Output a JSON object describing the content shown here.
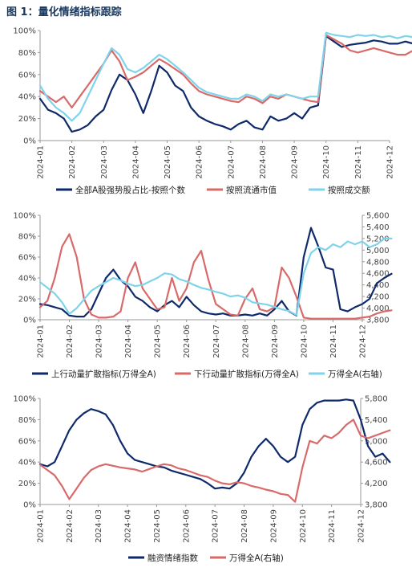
{
  "page_title": "图 1：量化情绪指标跟踪",
  "colors": {
    "navy": "#0f2a6b",
    "red": "#d86a6a",
    "cyan": "#7fd3ea",
    "title": "#17375e",
    "axis": "#666666"
  },
  "chart_data": [
    {
      "type": "line",
      "x_ticks": [
        "2024-01",
        "2024-02",
        "2024-03",
        "2024-04",
        "2024-05",
        "2024-06",
        "2024-07",
        "2024-08",
        "2024-09",
        "2024-10",
        "2024-11",
        "2024-12"
      ],
      "ylim": [
        0,
        100
      ],
      "y_ticks": [
        "0%",
        "20%",
        "40%",
        "60%",
        "80%",
        "100%"
      ],
      "legend_position": "bottom",
      "series": [
        {
          "name": "全部A股强势股占比-按照个数",
          "color": "#0f2a6b",
          "axis": "left",
          "x": [
            0,
            0.25,
            0.5,
            0.75,
            1,
            1.25,
            1.5,
            1.75,
            2,
            2.25,
            2.5,
            2.75,
            3,
            3.25,
            3.5,
            3.75,
            4,
            4.25,
            4.5,
            4.75,
            5,
            5.25,
            5.5,
            5.75,
            6,
            6.25,
            6.5,
            6.75,
            7,
            7.25,
            7.5,
            7.75,
            8,
            8.25,
            8.5,
            8.75,
            9,
            9.25,
            9.5,
            9.75,
            10,
            10.25,
            10.5,
            10.75,
            11,
            11.25,
            11.5,
            11.75,
            12
          ],
          "y": [
            38,
            28,
            25,
            20,
            8,
            10,
            14,
            22,
            28,
            46,
            60,
            55,
            42,
            25,
            45,
            68,
            62,
            50,
            45,
            30,
            22,
            18,
            15,
            13,
            10,
            15,
            18,
            12,
            10,
            22,
            18,
            20,
            25,
            20,
            30,
            32,
            95,
            90,
            85,
            87,
            88,
            89,
            91,
            90,
            88,
            88,
            90,
            88,
            89
          ]
        },
        {
          "name": "按照流通市值",
          "color": "#d86a6a",
          "axis": "left",
          "x": [
            0,
            0.25,
            0.5,
            0.75,
            1,
            1.25,
            1.5,
            1.75,
            2,
            2.25,
            2.5,
            2.75,
            3,
            3.25,
            3.5,
            3.75,
            4,
            4.25,
            4.5,
            4.75,
            5,
            5.25,
            5.5,
            5.75,
            6,
            6.25,
            6.5,
            6.75,
            7,
            7.25,
            7.5,
            7.75,
            8,
            8.25,
            8.5,
            8.75,
            9,
            9.25,
            9.5,
            9.75,
            10,
            10.25,
            10.5,
            10.75,
            11,
            11.25,
            11.5,
            11.75,
            12
          ],
          "y": [
            45,
            40,
            35,
            40,
            30,
            40,
            50,
            60,
            70,
            82,
            72,
            55,
            58,
            62,
            68,
            74,
            70,
            65,
            60,
            52,
            45,
            42,
            40,
            38,
            36,
            35,
            40,
            38,
            34,
            40,
            38,
            42,
            40,
            38,
            36,
            35,
            96,
            92,
            88,
            82,
            80,
            82,
            84,
            82,
            80,
            78,
            78,
            82,
            85
          ]
        },
        {
          "name": "按照成交额",
          "color": "#7fd3ea",
          "axis": "left",
          "x": [
            0,
            0.25,
            0.5,
            0.75,
            1,
            1.25,
            1.5,
            1.75,
            2,
            2.25,
            2.5,
            2.75,
            3,
            3.25,
            3.5,
            3.75,
            4,
            4.25,
            4.5,
            4.75,
            5,
            5.25,
            5.5,
            5.75,
            6,
            6.25,
            6.5,
            6.75,
            7,
            7.25,
            7.5,
            7.75,
            8,
            8.25,
            8.5,
            8.75,
            9,
            9.25,
            9.5,
            9.75,
            10,
            10.25,
            10.5,
            10.75,
            11,
            11.25,
            11.5,
            11.75,
            12
          ],
          "y": [
            50,
            38,
            30,
            25,
            18,
            25,
            40,
            55,
            70,
            84,
            78,
            65,
            62,
            66,
            72,
            78,
            74,
            68,
            62,
            55,
            48,
            44,
            42,
            40,
            38,
            38,
            42,
            40,
            36,
            42,
            40,
            42,
            40,
            38,
            40,
            40,
            98,
            96,
            95,
            94,
            96,
            95,
            96,
            94,
            95,
            93,
            95,
            94,
            95
          ]
        }
      ]
    },
    {
      "type": "line",
      "x_ticks": [
        "2024-01",
        "2024-02",
        "2024-03",
        "2024-04",
        "2024-05",
        "2024-06",
        "2024-07",
        "2024-08",
        "2024-09",
        "2024-10",
        "2024-11",
        "2024-12"
      ],
      "ylim": [
        0,
        100
      ],
      "y_ticks": [
        "0%",
        "20%",
        "40%",
        "60%",
        "80%",
        "100%"
      ],
      "y2lim": [
        3800,
        5600
      ],
      "y2_ticks": [
        "3,800",
        "4,000",
        "4,200",
        "4,400",
        "4,600",
        "4,800",
        "5,000",
        "5,200",
        "5,400",
        "5,600"
      ],
      "legend_position": "bottom",
      "series": [
        {
          "name": "上行动量扩散指标(万得全A)",
          "color": "#0f2a6b",
          "axis": "left",
          "x": [
            0,
            0.25,
            0.5,
            0.75,
            1,
            1.25,
            1.5,
            1.75,
            2,
            2.25,
            2.5,
            2.75,
            3,
            3.25,
            3.5,
            3.75,
            4,
            4.25,
            4.5,
            4.75,
            5,
            5.25,
            5.5,
            5.75,
            6,
            6.25,
            6.5,
            6.75,
            7,
            7.25,
            7.5,
            7.75,
            8,
            8.25,
            8.5,
            8.75,
            9,
            9.25,
            9.5,
            9.75,
            10,
            10.25,
            10.5,
            10.75,
            11,
            11.25,
            11.5,
            11.75,
            12
          ],
          "y": [
            15,
            14,
            12,
            10,
            4,
            3,
            3,
            10,
            25,
            40,
            48,
            38,
            32,
            22,
            18,
            12,
            8,
            14,
            18,
            12,
            22,
            14,
            8,
            6,
            5,
            6,
            4,
            4,
            5,
            4,
            6,
            4,
            10,
            18,
            8,
            4,
            60,
            88,
            70,
            50,
            48,
            10,
            8,
            12,
            15,
            20,
            35,
            40,
            44
          ]
        },
        {
          "name": "下行动量扩散指标(万得全A)",
          "color": "#d86a6a",
          "axis": "left",
          "x": [
            0,
            0.25,
            0.5,
            0.75,
            1,
            1.25,
            1.5,
            1.75,
            2,
            2.25,
            2.5,
            2.75,
            3,
            3.25,
            3.5,
            3.75,
            4,
            4.25,
            4.5,
            4.75,
            5,
            5.25,
            5.5,
            5.75,
            6,
            6.25,
            6.5,
            6.75,
            7,
            7.25,
            7.5,
            7.75,
            8,
            8.25,
            8.5,
            8.75,
            9,
            9.25,
            9.5,
            9.75,
            10,
            10.25,
            10.5,
            10.75,
            11,
            11.25,
            11.5,
            11.75,
            12
          ],
          "y": [
            12,
            18,
            40,
            70,
            82,
            60,
            20,
            5,
            2,
            2,
            3,
            8,
            40,
            55,
            30,
            20,
            10,
            12,
            40,
            18,
            30,
            55,
            66,
            38,
            15,
            10,
            5,
            4,
            20,
            30,
            10,
            8,
            12,
            50,
            40,
            22,
            2,
            1,
            1,
            1,
            1,
            1,
            1,
            1,
            2,
            3,
            6,
            8,
            9
          ]
        },
        {
          "name": "万得全A(右轴)",
          "color": "#7fd3ea",
          "axis": "right",
          "x": [
            0,
            0.25,
            0.5,
            0.75,
            1,
            1.25,
            1.5,
            1.75,
            2,
            2.25,
            2.5,
            2.75,
            3,
            3.25,
            3.5,
            3.75,
            4,
            4.25,
            4.5,
            4.75,
            5,
            5.25,
            5.5,
            5.75,
            6,
            6.25,
            6.5,
            6.75,
            7,
            7.25,
            7.5,
            7.75,
            8,
            8.25,
            8.5,
            8.75,
            9,
            9.25,
            9.5,
            9.75,
            10,
            10.25,
            10.5,
            10.75,
            11,
            11.25,
            11.5,
            11.75,
            12
          ],
          "y": [
            4450,
            4350,
            4250,
            4100,
            3900,
            4000,
            4150,
            4300,
            4380,
            4450,
            4520,
            4480,
            4420,
            4380,
            4400,
            4460,
            4520,
            4600,
            4580,
            4500,
            4460,
            4400,
            4350,
            4320,
            4280,
            4250,
            4200,
            4220,
            4180,
            4100,
            4080,
            4060,
            4020,
            3980,
            3950,
            3880,
            4600,
            4950,
            5050,
            5000,
            5100,
            5050,
            5150,
            5100,
            5150,
            5050,
            5100,
            5200,
            5200
          ]
        }
      ]
    },
    {
      "type": "line",
      "x_ticks": [
        "2024-01",
        "2024-02",
        "2024-03",
        "2024-04",
        "2024-05",
        "2024-06",
        "2024-07",
        "2024-08",
        "2024-09",
        "2024-10",
        "2024-11",
        "2024-12"
      ],
      "ylim": [
        0,
        100
      ],
      "y_ticks": [
        "0%",
        "20%",
        "40%",
        "60%",
        "80%",
        "100%"
      ],
      "y2lim": [
        3800,
        5800
      ],
      "y2_ticks": [
        "3,800",
        "4,200",
        "4,600",
        "5,000",
        "5,400",
        "5,800"
      ],
      "legend_position": "bottom",
      "series": [
        {
          "name": "融资情绪指数",
          "color": "#0f2a6b",
          "axis": "left",
          "x": [
            0,
            0.25,
            0.5,
            0.75,
            1,
            1.25,
            1.5,
            1.75,
            2,
            2.25,
            2.5,
            2.75,
            3,
            3.25,
            3.5,
            3.75,
            4,
            4.25,
            4.5,
            4.75,
            5,
            5.25,
            5.5,
            5.75,
            6,
            6.25,
            6.5,
            6.75,
            7,
            7.25,
            7.5,
            7.75,
            8,
            8.25,
            8.5,
            8.75,
            9,
            9.25,
            9.5,
            9.75,
            10,
            10.25,
            10.5,
            10.75,
            11,
            11.25,
            11.5,
            11.75,
            12
          ],
          "y": [
            38,
            36,
            40,
            55,
            70,
            80,
            86,
            90,
            88,
            85,
            75,
            60,
            48,
            42,
            40,
            38,
            36,
            35,
            32,
            30,
            28,
            26,
            24,
            20,
            15,
            16,
            15,
            20,
            30,
            45,
            55,
            62,
            55,
            45,
            40,
            45,
            75,
            90,
            96,
            98,
            98,
            98,
            99,
            98,
            80,
            55,
            45,
            48,
            40
          ]
        },
        {
          "name": "万得全A(右轴)",
          "color": "#d86a6a",
          "axis": "right",
          "x": [
            0,
            0.25,
            0.5,
            0.75,
            1,
            1.25,
            1.5,
            1.75,
            2,
            2.25,
            2.5,
            2.75,
            3,
            3.25,
            3.5,
            3.75,
            4,
            4.25,
            4.5,
            4.75,
            5,
            5.25,
            5.5,
            5.75,
            6,
            6.25,
            6.5,
            6.75,
            7,
            7.25,
            7.5,
            7.75,
            8,
            8.25,
            8.5,
            8.75,
            9,
            9.25,
            9.5,
            9.75,
            10,
            10.25,
            10.5,
            10.75,
            11,
            11.25,
            11.5,
            11.75,
            12
          ],
          "y": [
            4550,
            4450,
            4350,
            4150,
            3900,
            4100,
            4300,
            4450,
            4520,
            4560,
            4530,
            4500,
            4480,
            4460,
            4420,
            4470,
            4520,
            4560,
            4540,
            4480,
            4450,
            4400,
            4350,
            4320,
            4250,
            4200,
            4180,
            4220,
            4200,
            4150,
            4120,
            4080,
            4050,
            4000,
            3980,
            3850,
            4500,
            5000,
            4950,
            5100,
            5050,
            5150,
            5300,
            5400,
            5100,
            5050,
            5100,
            5150,
            5200
          ]
        }
      ]
    }
  ]
}
